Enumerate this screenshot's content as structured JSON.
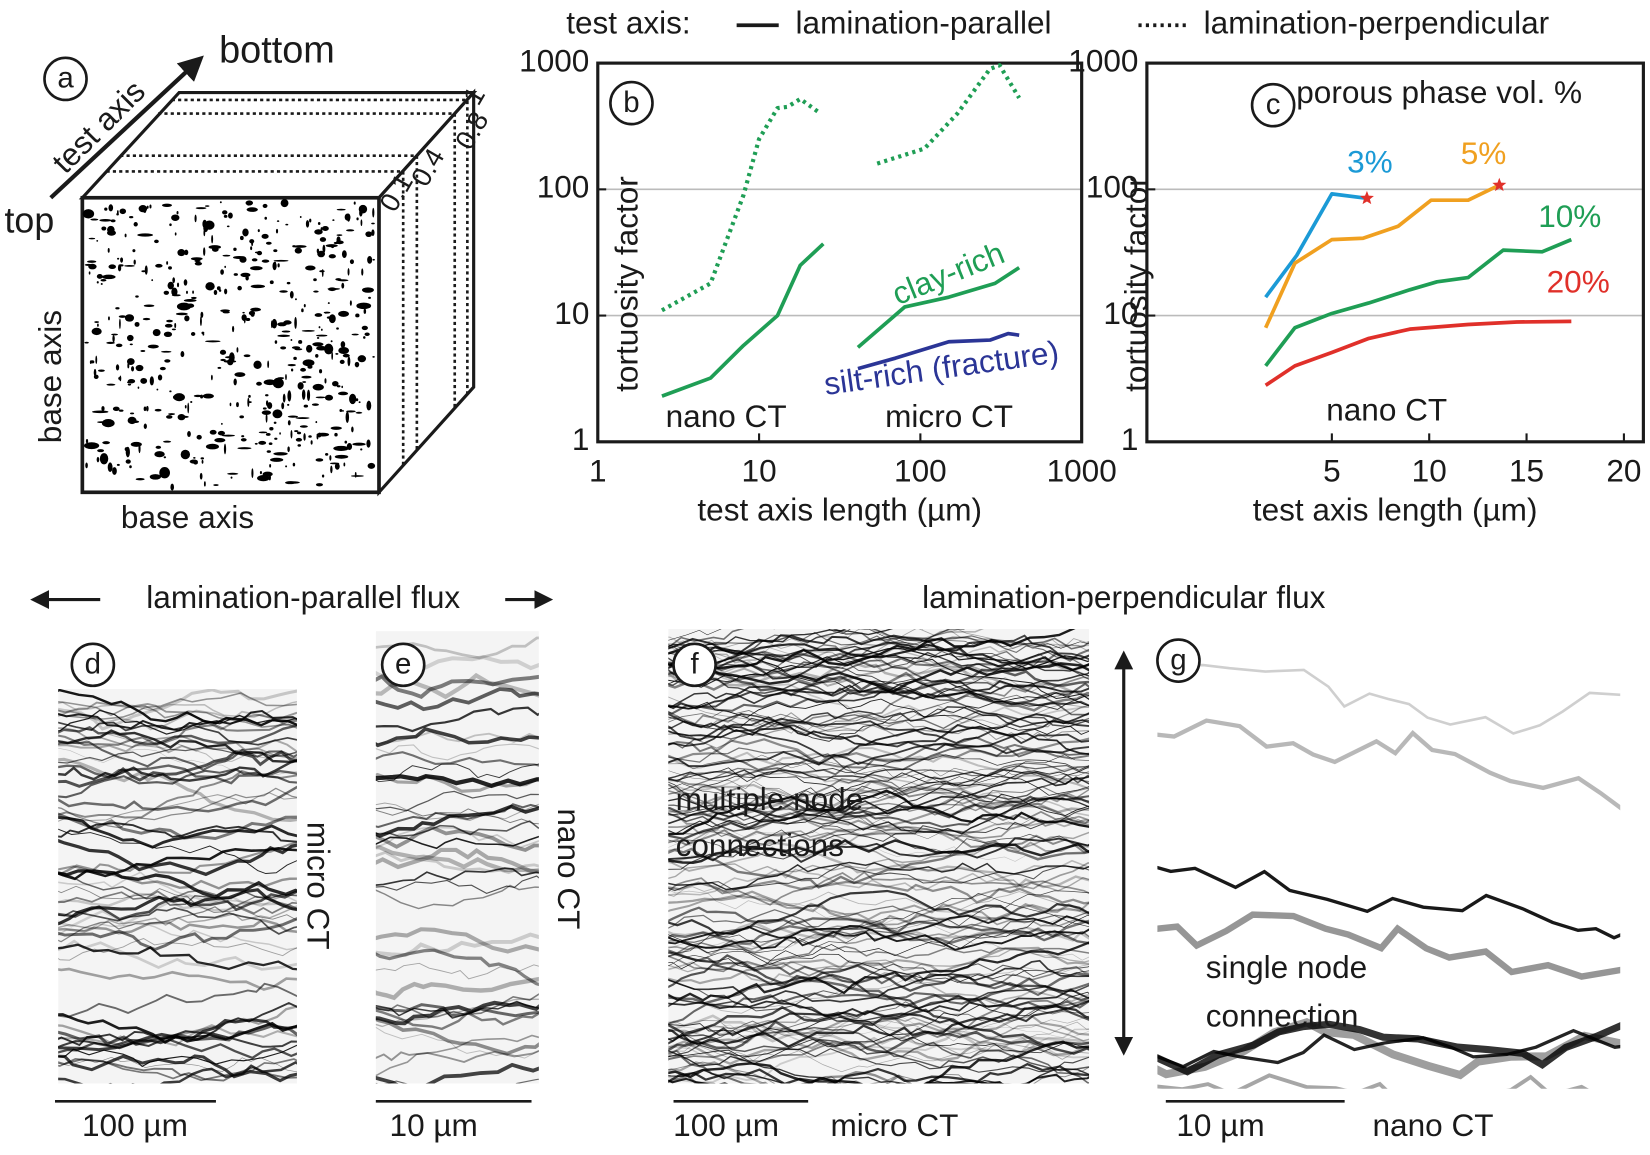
{
  "panel_a": {
    "label": "a",
    "arrow_end": "bottom",
    "arrow_label": "test axis",
    "arrow_start": "top",
    "side_axis": "base axis",
    "base_axis": "base axis",
    "slices": [
      "0.1",
      "0.4",
      "0.8",
      "1"
    ]
  },
  "legend": {
    "title": "test axis:",
    "items": [
      "lamination-parallel",
      "lamination-perpendicular"
    ]
  },
  "chart_data": [
    {
      "type": "line",
      "label": "b",
      "xscale": "log",
      "yscale": "log",
      "xlabel": "test axis length (µm)",
      "ylabel": "tortuosity factor",
      "xlim": [
        1,
        1000
      ],
      "ylim": [
        1,
        1000
      ],
      "xticks": [
        1,
        10,
        100,
        1000
      ],
      "yticks": [
        1,
        10,
        100,
        1000
      ],
      "grid": true,
      "annotations": [
        "nano CT",
        "micro CT"
      ],
      "series": [
        {
          "color": "#1f9e55",
          "style": "dotted",
          "x": [
            2.5,
            5,
            8,
            10,
            13,
            15,
            18,
            24
          ],
          "values": [
            11,
            18,
            90,
            250,
            440,
            450,
            520,
            400
          ]
        },
        {
          "color": "#1f9e55",
          "style": "solid",
          "x": [
            2.5,
            5,
            8,
            13,
            18,
            25
          ],
          "values": [
            2.3,
            3.2,
            5.8,
            10,
            25,
            37
          ]
        },
        {
          "color": "#1f9e55",
          "style": "dotted",
          "x": [
            54,
            106,
            170,
            270,
            310,
            410
          ],
          "values": [
            160,
            210,
            400,
            900,
            960,
            530
          ]
        },
        {
          "name": "clay-rich",
          "color": "#1f9e55",
          "style": "solid",
          "x": [
            41,
            80,
            150,
            290,
            410
          ],
          "values": [
            5.6,
            11.7,
            14,
            18,
            24
          ]
        },
        {
          "name": "silt-rich (fracture)",
          "color": "#2b3596",
          "style": "solid",
          "x": [
            41,
            70,
            150,
            270,
            350,
            410
          ],
          "values": [
            3.8,
            4.6,
            6.2,
            6.4,
            7.2,
            7
          ]
        }
      ]
    },
    {
      "type": "line",
      "label": "c",
      "xscale": "linear",
      "yscale": "log",
      "xlabel": "test axis length (µm)",
      "ylabel": "tortuosity factor",
      "legend_title": "porous phase vol. %",
      "xlim": [
        -4.5,
        21
      ],
      "ylim": [
        1,
        1000
      ],
      "xticks": [
        5,
        10,
        15,
        20
      ],
      "yticks": [
        1,
        10,
        100,
        1000
      ],
      "grid": true,
      "annotations": [
        "nano CT"
      ],
      "series": [
        {
          "name": "3%",
          "color": "#1b9ad6",
          "style": "solid",
          "end_marker_color": "#e0302a",
          "x": [
            1.6,
            3.2,
            5,
            6.8
          ],
          "values": [
            14,
            30,
            92,
            85
          ]
        },
        {
          "name": "5%",
          "color": "#f0a020",
          "style": "solid",
          "end_marker_color": "#e0302a",
          "x": [
            1.6,
            3.1,
            5,
            6.6,
            8.4,
            10.1,
            12,
            13.6
          ],
          "values": [
            8,
            26,
            40,
            41,
            51,
            82,
            82,
            108
          ]
        },
        {
          "name": "10%",
          "color": "#1f9e55",
          "style": "solid",
          "x": [
            1.6,
            3.1,
            5,
            6.9,
            9,
            10.4,
            12,
            13.8,
            15.8,
            17.3
          ],
          "values": [
            4,
            8,
            10.4,
            12.6,
            16,
            18.5,
            20,
            33,
            32,
            40
          ]
        },
        {
          "name": "20%",
          "color": "#e0302a",
          "style": "solid",
          "x": [
            1.6,
            3.1,
            5,
            6.9,
            9,
            12,
            14.5,
            17.3
          ],
          "values": [
            2.8,
            4,
            5.1,
            6.6,
            7.8,
            8.5,
            8.9,
            9
          ]
        }
      ]
    }
  ],
  "flux_labels": [
    "lamination-parallel flux",
    "lamination-perpendicular flux"
  ],
  "panels": [
    {
      "label": "d",
      "side_label": "micro CT",
      "scale": "100 µm"
    },
    {
      "label": "e",
      "side_label": "nano CT",
      "scale": "10 µm"
    },
    {
      "label": "f",
      "note": [
        "multiple node",
        "connections"
      ],
      "scale": "100 µm",
      "caption": "micro CT"
    },
    {
      "label": "g",
      "note": [
        "single node",
        "connection"
      ],
      "scale": "10 µm",
      "caption": "nano CT"
    }
  ]
}
